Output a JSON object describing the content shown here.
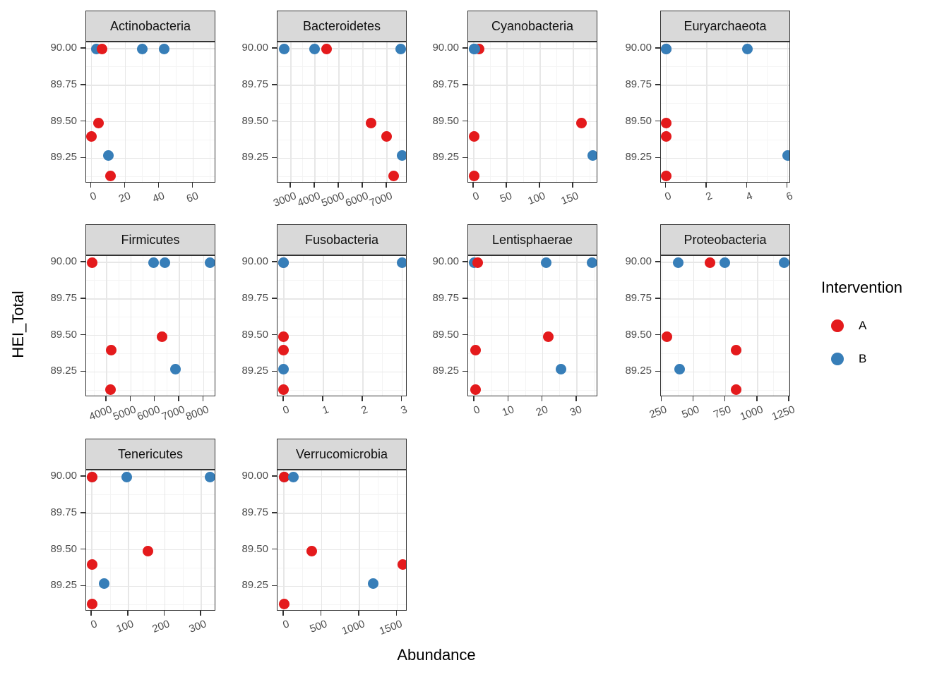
{
  "axis": {
    "x_label": "Abundance",
    "y_label": "HEI_Total",
    "y_domain": [
      89.078,
      90.044
    ],
    "y_ticks": [
      {
        "value": 90.0,
        "label": "90.00"
      },
      {
        "value": 89.75,
        "label": "89.75"
      },
      {
        "value": 89.5,
        "label": "89.50"
      },
      {
        "value": 89.25,
        "label": "89.25"
      }
    ],
    "y_minor": [
      89.125,
      89.375,
      89.625,
      89.875
    ]
  },
  "legend": {
    "title": "Intervention",
    "entries": [
      {
        "label": "A",
        "color": "#E41A1C"
      },
      {
        "label": "B",
        "color": "#377EB8"
      }
    ]
  },
  "style": {
    "color_A": "#E41A1C",
    "color_B": "#377EB8",
    "strip_fill": "#D9D9D9",
    "panel_border": "#333333",
    "grid_major": "#E7E7E7",
    "grid_minor": "#F4F4F4",
    "tick_text": "#4D4D4D"
  },
  "chart_data": [
    {
      "type": "scatter",
      "facet": "Actinobacteria",
      "x_domain": [
        -3.2,
        73.6
      ],
      "x_ticks": [
        0,
        20,
        40,
        60
      ],
      "x_minor": [
        10,
        30,
        50,
        70
      ],
      "points": [
        {
          "g": "B",
          "x": 3,
          "y": 90.0
        },
        {
          "g": "A",
          "x": 6,
          "y": 90.0
        },
        {
          "g": "B",
          "x": 30,
          "y": 90.0
        },
        {
          "g": "B",
          "x": 43,
          "y": 90.0
        },
        {
          "g": "A",
          "x": 4,
          "y": 89.49
        },
        {
          "g": "A",
          "x": 0,
          "y": 89.4
        },
        {
          "g": "B",
          "x": 10,
          "y": 89.27
        },
        {
          "g": "A",
          "x": 11,
          "y": 89.13
        }
      ]
    },
    {
      "type": "scatter",
      "facet": "Bacteroidetes",
      "x_domain": [
        2445,
        7845
      ],
      "x_ticks": [
        3000,
        4000,
        5000,
        6000,
        7000
      ],
      "x_minor": [
        2500,
        3500,
        4500,
        5500,
        6500,
        7500
      ],
      "points": [
        {
          "g": "B",
          "x": 2710,
          "y": 90.0
        },
        {
          "g": "B",
          "x": 3990,
          "y": 90.0
        },
        {
          "g": "A",
          "x": 4480,
          "y": 90.0
        },
        {
          "g": "B",
          "x": 7570,
          "y": 90.0
        },
        {
          "g": "A",
          "x": 6330,
          "y": 89.49
        },
        {
          "g": "A",
          "x": 6970,
          "y": 89.4
        },
        {
          "g": "B",
          "x": 7630,
          "y": 89.27
        },
        {
          "g": "A",
          "x": 7260,
          "y": 89.13
        }
      ]
    },
    {
      "type": "scatter",
      "facet": "Cyanobacteria",
      "x_domain": [
        -8.5,
        187
      ],
      "x_ticks": [
        0,
        50,
        100,
        150
      ],
      "x_minor": [
        25,
        75,
        125,
        175
      ],
      "points": [
        {
          "g": "A",
          "x": 8,
          "y": 90.0
        },
        {
          "g": "B",
          "x": 0,
          "y": 90.0
        },
        {
          "g": "B",
          "x": 1,
          "y": 90.0
        },
        {
          "g": "B",
          "x": 2,
          "y": 90.0
        },
        {
          "g": "A",
          "x": 162,
          "y": 89.49
        },
        {
          "g": "A",
          "x": 1,
          "y": 89.4
        },
        {
          "g": "B",
          "x": 179,
          "y": 89.27
        },
        {
          "g": "A",
          "x": 1,
          "y": 89.13
        }
      ]
    },
    {
      "type": "scatter",
      "facet": "Euryarchaeota",
      "x_domain": [
        -0.26,
        6.15
      ],
      "x_ticks": [
        0,
        2,
        4,
        6
      ],
      "x_minor": [
        1,
        3,
        5
      ],
      "points": [
        {
          "g": "A",
          "x": 0,
          "y": 90.0
        },
        {
          "g": "B",
          "x": 0,
          "y": 90.0
        },
        {
          "g": "B",
          "x": 0,
          "y": 90.0
        },
        {
          "g": "B",
          "x": 4,
          "y": 90.0
        },
        {
          "g": "A",
          "x": 0,
          "y": 89.49
        },
        {
          "g": "A",
          "x": 0,
          "y": 89.4
        },
        {
          "g": "B",
          "x": 6,
          "y": 89.27
        },
        {
          "g": "A",
          "x": 0,
          "y": 89.13
        }
      ]
    },
    {
      "type": "scatter",
      "facet": "Firmicutes",
      "x_domain": [
        3157,
        8515
      ],
      "x_ticks": [
        4000,
        5000,
        6000,
        7000,
        8000
      ],
      "x_minor": [
        3500,
        4500,
        5500,
        6500,
        7500,
        8500
      ],
      "points": [
        {
          "g": "A",
          "x": 3400,
          "y": 90.0
        },
        {
          "g": "B",
          "x": 5940,
          "y": 90.0
        },
        {
          "g": "B",
          "x": 6400,
          "y": 90.0
        },
        {
          "g": "B",
          "x": 8260,
          "y": 90.0
        },
        {
          "g": "A",
          "x": 6300,
          "y": 89.49
        },
        {
          "g": "A",
          "x": 4200,
          "y": 89.4
        },
        {
          "g": "B",
          "x": 6840,
          "y": 89.27
        },
        {
          "g": "A",
          "x": 4150,
          "y": 89.13
        }
      ]
    },
    {
      "type": "scatter",
      "facet": "Fusobacteria",
      "x_domain": [
        -0.16,
        3.13
      ],
      "x_ticks": [
        0,
        1,
        2,
        3
      ],
      "x_minor": [
        0.5,
        1.5,
        2.5
      ],
      "points": [
        {
          "g": "A",
          "x": 0,
          "y": 90.0
        },
        {
          "g": "B",
          "x": 0,
          "y": 90.0
        },
        {
          "g": "B",
          "x": 0,
          "y": 90.0
        },
        {
          "g": "B",
          "x": 3,
          "y": 90.0
        },
        {
          "g": "A",
          "x": 0,
          "y": 89.49
        },
        {
          "g": "A",
          "x": 0,
          "y": 89.4
        },
        {
          "g": "B",
          "x": 0,
          "y": 89.27
        },
        {
          "g": "A",
          "x": 0,
          "y": 89.13
        }
      ]
    },
    {
      "type": "scatter",
      "facet": "Lentisphaerae",
      "x_domain": [
        -1.86,
        36.2
      ],
      "x_ticks": [
        0,
        10,
        20,
        30
      ],
      "x_minor": [
        5,
        15,
        25,
        35
      ],
      "points": [
        {
          "g": "B",
          "x": 0,
          "y": 90.0
        },
        {
          "g": "A",
          "x": 1,
          "y": 90.0
        },
        {
          "g": "B",
          "x": 21,
          "y": 90.0
        },
        {
          "g": "B",
          "x": 34.5,
          "y": 90.0
        },
        {
          "g": "A",
          "x": 21.6,
          "y": 89.49
        },
        {
          "g": "A",
          "x": 0.3,
          "y": 89.4
        },
        {
          "g": "B",
          "x": 25.4,
          "y": 89.27
        },
        {
          "g": "A",
          "x": 0.3,
          "y": 89.13
        }
      ]
    },
    {
      "type": "scatter",
      "facet": "Proteobacteria",
      "x_domain": [
        242,
        1261
      ],
      "x_ticks": [
        250,
        500,
        750,
        1000,
        1250
      ],
      "x_minor": [
        375,
        625,
        875,
        1125
      ],
      "points": [
        {
          "g": "B",
          "x": 380,
          "y": 90.0
        },
        {
          "g": "A",
          "x": 625,
          "y": 90.0
        },
        {
          "g": "B",
          "x": 745,
          "y": 90.0
        },
        {
          "g": "B",
          "x": 1210,
          "y": 90.0
        },
        {
          "g": "A",
          "x": 290,
          "y": 89.49
        },
        {
          "g": "A",
          "x": 830,
          "y": 89.4
        },
        {
          "g": "B",
          "x": 390,
          "y": 89.27
        },
        {
          "g": "A",
          "x": 830,
          "y": 89.13
        }
      ]
    },
    {
      "type": "scatter",
      "facet": "Tenericutes",
      "x_domain": [
        -16,
        341
      ],
      "x_ticks": [
        0,
        100,
        200,
        300
      ],
      "x_minor": [
        50,
        150,
        250
      ],
      "points": [
        {
          "g": "B",
          "x": 0,
          "y": 90.0
        },
        {
          "g": "A",
          "x": 0,
          "y": 90.0
        },
        {
          "g": "B",
          "x": 96,
          "y": 90.0
        },
        {
          "g": "B",
          "x": 324,
          "y": 90.0
        },
        {
          "g": "A",
          "x": 153,
          "y": 89.49
        },
        {
          "g": "A",
          "x": 0,
          "y": 89.4
        },
        {
          "g": "B",
          "x": 34,
          "y": 89.27
        },
        {
          "g": "A",
          "x": 0,
          "y": 89.13
        }
      ]
    },
    {
      "type": "scatter",
      "facet": "Verrucomicrobia",
      "x_domain": [
        -84,
        1633
      ],
      "x_ticks": [
        0,
        500,
        1000,
        1500
      ],
      "x_minor": [
        250,
        750,
        1250
      ],
      "points": [
        {
          "g": "B",
          "x": 0,
          "y": 90.0
        },
        {
          "g": "B",
          "x": 0,
          "y": 90.0
        },
        {
          "g": "A",
          "x": 0,
          "y": 90.0
        },
        {
          "g": "B",
          "x": 130,
          "y": 90.0
        },
        {
          "g": "A",
          "x": 372,
          "y": 89.49
        },
        {
          "g": "A",
          "x": 1573,
          "y": 89.4
        },
        {
          "g": "B",
          "x": 1183,
          "y": 89.27
        },
        {
          "g": "A",
          "x": 0,
          "y": 89.13
        }
      ]
    }
  ]
}
